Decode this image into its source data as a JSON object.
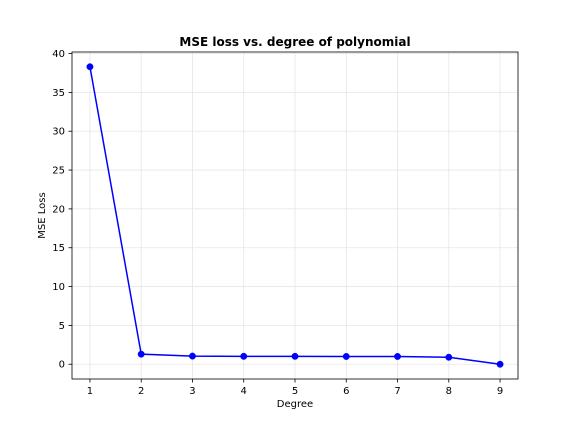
{
  "chart_data": {
    "type": "line",
    "title": "MSE loss vs. degree of polynomial",
    "xlabel": "Degree",
    "ylabel": "MSE Loss",
    "x": [
      1,
      2,
      3,
      4,
      5,
      6,
      7,
      8,
      9
    ],
    "series": [
      {
        "values": [
          38.3,
          1.3,
          1.05,
          1.02,
          1.02,
          1.0,
          1.0,
          0.9,
          0.0
        ],
        "color": "#0000ff",
        "marker": "circle"
      }
    ],
    "xlim": [
      0.65,
      9.35
    ],
    "ylim": [
      -1.9,
      40.2
    ],
    "xticks": [
      1,
      2,
      3,
      4,
      5,
      6,
      7,
      8,
      9
    ],
    "yticks": [
      0,
      5,
      10,
      15,
      20,
      25,
      30,
      35,
      40
    ],
    "grid": true,
    "legend": "none"
  }
}
